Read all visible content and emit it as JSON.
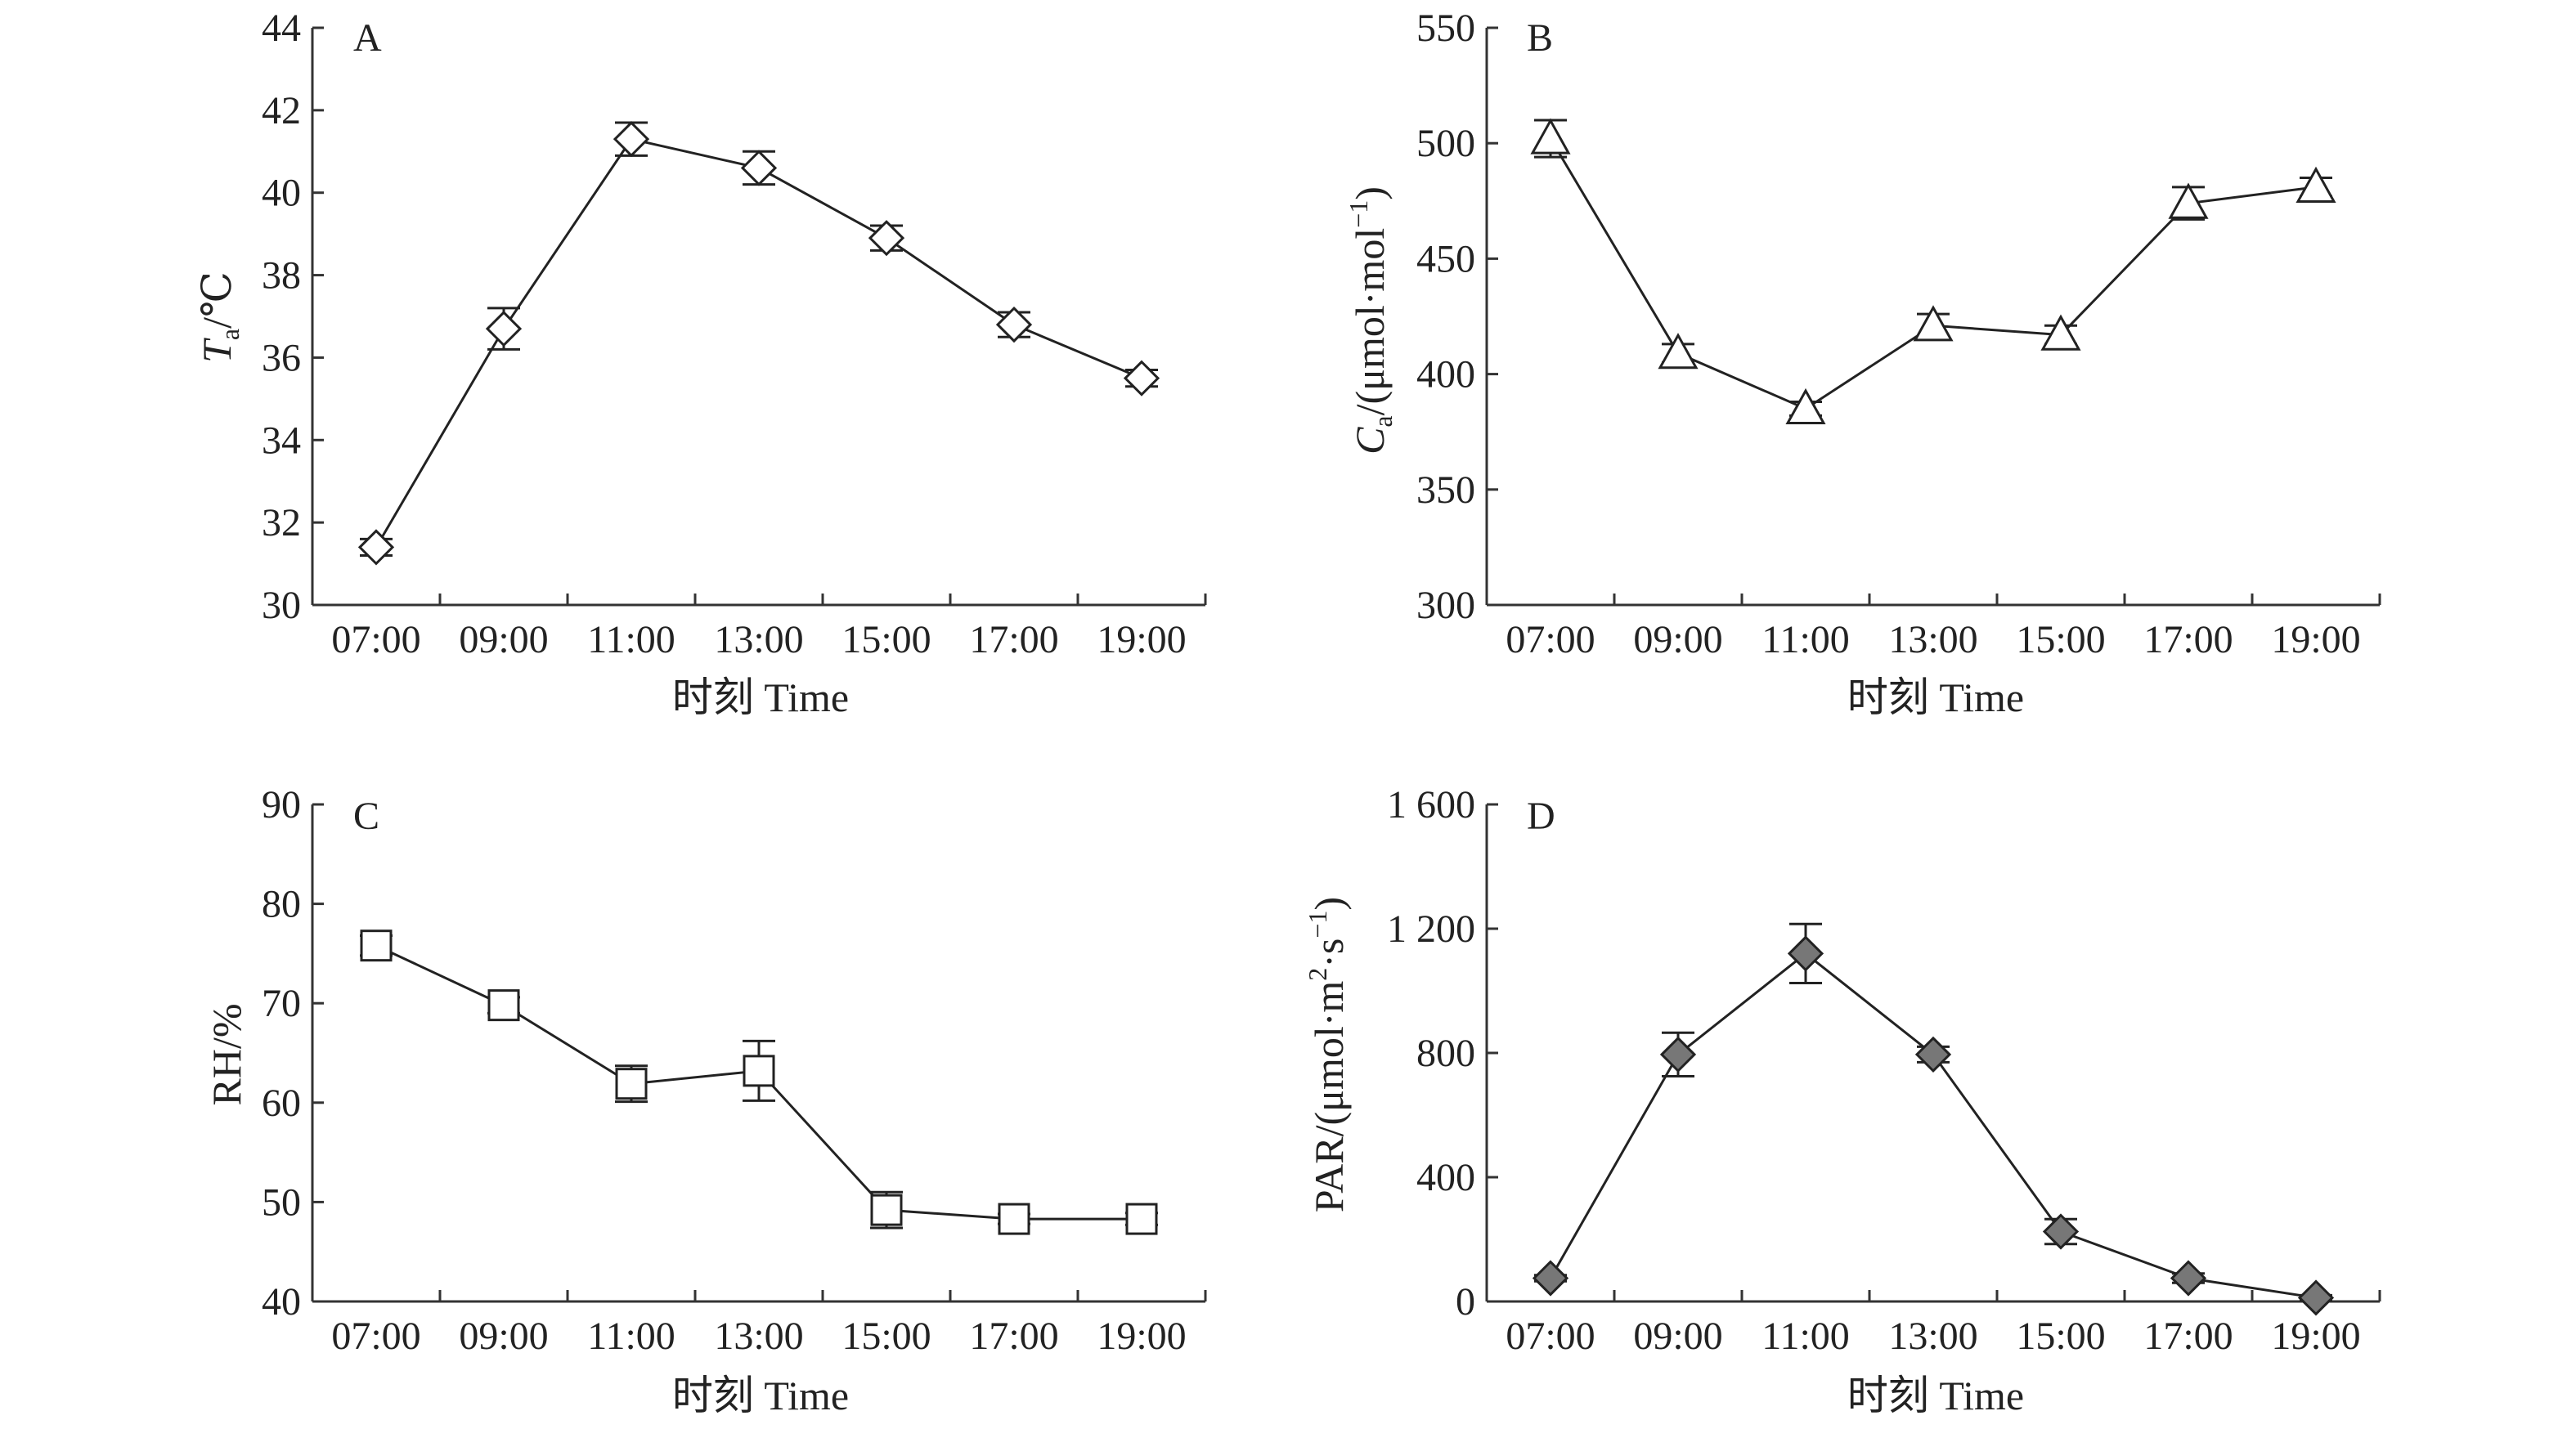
{
  "chart_data": [
    {
      "type": "line",
      "panel": "A",
      "xlabel": "时刻 Time",
      "ylabel_main": "T",
      "ylabel_sub": "a",
      "ylabel_rest": "/℃",
      "categories": [
        "07:00",
        "09:00",
        "11:00",
        "13:00",
        "15:00",
        "17:00",
        "19:00"
      ],
      "y_ticks": [
        "30",
        "32",
        "34",
        "36",
        "38",
        "40",
        "42",
        "44"
      ],
      "ylim": [
        30,
        44
      ],
      "marker": "diamond-open",
      "values": [
        31.4,
        36.7,
        41.3,
        40.6,
        38.9,
        36.8,
        35.5
      ],
      "errors": [
        0.2,
        0.5,
        0.4,
        0.4,
        0.3,
        0.3,
        0.2
      ]
    },
    {
      "type": "line",
      "panel": "B",
      "xlabel": "时刻 Time",
      "ylabel_main": "C",
      "ylabel_sub": "a",
      "ylabel_rest": "/(μmol·mol",
      "ylabel_sup": "−1",
      "ylabel_end": ")",
      "categories": [
        "07:00",
        "09:00",
        "11:00",
        "13:00",
        "15:00",
        "17:00",
        "19:00"
      ],
      "y_ticks": [
        "300",
        "350",
        "400",
        "450",
        "500",
        "550"
      ],
      "ylim": [
        300,
        550
      ],
      "marker": "triangle-open",
      "values": [
        502,
        409,
        385,
        421,
        417,
        474,
        481
      ],
      "errors": [
        8,
        4,
        3,
        5,
        4,
        7,
        4
      ]
    },
    {
      "type": "line",
      "panel": "C",
      "xlabel": "时刻 Time",
      "ylabel_main": "RH/%",
      "categories": [
        "07:00",
        "09:00",
        "11:00",
        "13:00",
        "15:00",
        "17:00",
        "19:00"
      ],
      "y_ticks": [
        "40",
        "50",
        "60",
        "70",
        "80",
        "90"
      ],
      "ylim": [
        40,
        90
      ],
      "marker": "square-open",
      "values": [
        75.8,
        69.8,
        61.9,
        63.2,
        49.2,
        48.3,
        48.3
      ],
      "errors": [
        1.0,
        0.8,
        1.8,
        3.0,
        1.8,
        0.5,
        0.6
      ]
    },
    {
      "type": "line",
      "panel": "D",
      "xlabel": "时刻 Time",
      "ylabel_main": "PAR/(μmol·m",
      "ylabel_sup": "2",
      "ylabel_mid": "·s",
      "ylabel_sup2": "−1",
      "ylabel_end": ")",
      "categories": [
        "07:00",
        "09:00",
        "11:00",
        "13:00",
        "15:00",
        "17:00",
        "19:00"
      ],
      "y_ticks": [
        "0",
        "400",
        "800",
        "1 200",
        "1 600"
      ],
      "ylim": [
        0,
        1600
      ],
      "marker": "diamond-filled",
      "marker_fill": "#777777",
      "values": [
        75,
        795,
        1120,
        795,
        225,
        75,
        12
      ],
      "errors": [
        10,
        70,
        95,
        25,
        40,
        15,
        8
      ]
    }
  ]
}
